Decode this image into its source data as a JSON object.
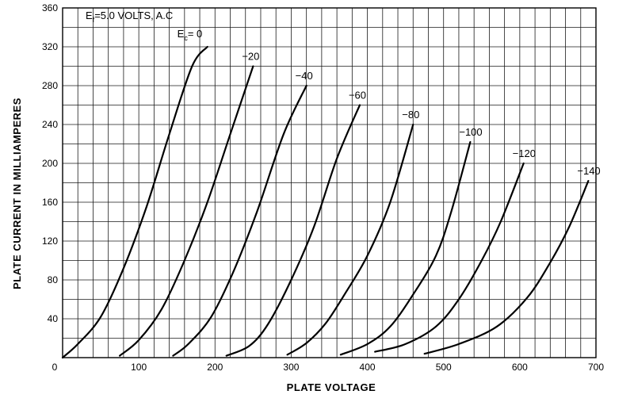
{
  "chart_data": {
    "type": "line",
    "title": "",
    "xlabel": "PLATE VOLTAGE",
    "ylabel": "PLATE CURRENT IN MILLIAMPERES",
    "xlim": [
      0,
      700
    ],
    "ylim": [
      0,
      360
    ],
    "x_ticks": [
      0,
      100,
      200,
      300,
      400,
      500,
      600,
      700
    ],
    "y_ticks": [
      40,
      80,
      120,
      160,
      200,
      240,
      280,
      320,
      360
    ],
    "x_tick_labels": [
      "0",
      "100",
      "200",
      "300",
      "400",
      "500",
      "600",
      "700"
    ],
    "y_tick_labels": [
      "40",
      "80",
      "120",
      "160",
      "200",
      "240",
      "280",
      "320",
      "360"
    ],
    "grid": true,
    "grid_x_step": 20,
    "grid_y_step": 20,
    "annotation": {
      "main": "E",
      "main_sub": "f",
      "rest": "=5.0  VOLTS, A.C"
    },
    "curve_label_prefix": {
      "main": "E",
      "sub": "c",
      "rest": "= 0"
    },
    "series": [
      {
        "name": "0",
        "label": "",
        "x": [
          0,
          20,
          50,
          80,
          110,
          140,
          170,
          190
        ],
        "y": [
          0,
          14,
          42,
          92,
          155,
          230,
          300,
          320
        ]
      },
      {
        "name": "-20",
        "label": "−20",
        "x": [
          75,
          100,
          130,
          160,
          190,
          220,
          250
        ],
        "y": [
          2,
          18,
          50,
          100,
          160,
          230,
          300
        ]
      },
      {
        "name": "-40",
        "label": "−40",
        "x": [
          145,
          165,
          195,
          225,
          255,
          290,
          320
        ],
        "y": [
          2,
          14,
          42,
          90,
          150,
          230,
          280
        ]
      },
      {
        "name": "-60",
        "label": "−60",
        "x": [
          215,
          245,
          270,
          300,
          330,
          360,
          390
        ],
        "y": [
          2,
          12,
          35,
          80,
          135,
          205,
          260
        ]
      },
      {
        "name": "-80",
        "label": "−80",
        "x": [
          295,
          320,
          345,
          370,
          400,
          430,
          460
        ],
        "y": [
          3,
          15,
          35,
          65,
          105,
          160,
          240
        ]
      },
      {
        "name": "-100",
        "label": "−100",
        "x": [
          365,
          400,
          430,
          460,
          490,
          510,
          535
        ],
        "y": [
          3,
          14,
          32,
          65,
          105,
          150,
          222
        ]
      },
      {
        "name": "-120",
        "label": "−120",
        "x": [
          410,
          450,
          490,
          520,
          550,
          575,
          605
        ],
        "y": [
          6,
          14,
          32,
          60,
          100,
          140,
          200
        ]
      },
      {
        "name": "-140",
        "label": "−140",
        "x": [
          475,
          520,
          570,
          610,
          640,
          665,
          690
        ],
        "y": [
          4,
          14,
          32,
          62,
          98,
          135,
          182
        ]
      }
    ]
  }
}
